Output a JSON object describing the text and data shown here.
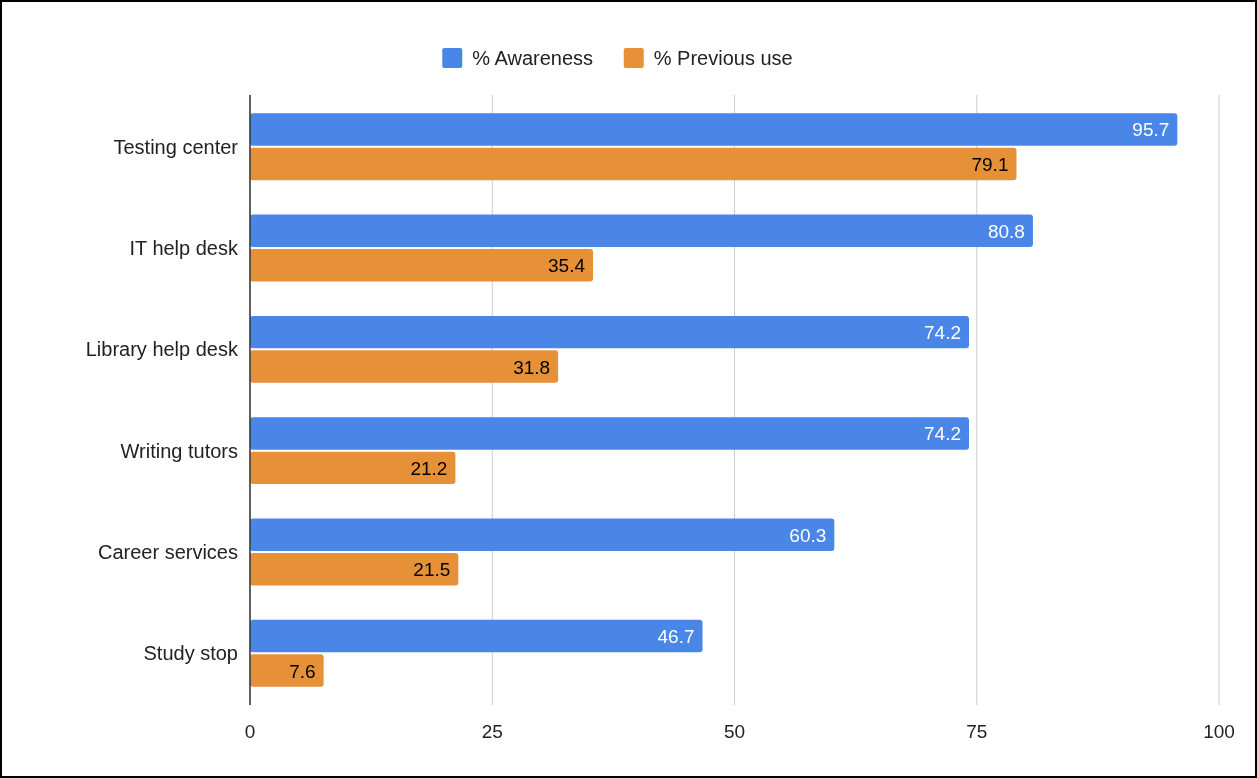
{
  "chart_data": {
    "type": "bar",
    "orientation": "horizontal",
    "categories": [
      "Testing center",
      "IT help desk",
      "Library help desk",
      "Writing tutors",
      "Career services",
      "Study stop"
    ],
    "series": [
      {
        "name": "% Awareness",
        "color": "#4a86e8",
        "values": [
          95.7,
          80.8,
          74.2,
          74.2,
          60.3,
          46.7
        ]
      },
      {
        "name": "% Previous use",
        "color": "#e69138",
        "values": [
          79.1,
          35.4,
          31.8,
          21.2,
          21.5,
          7.6
        ]
      }
    ],
    "xlim": [
      0,
      100
    ],
    "xticks": [
      0,
      25,
      50,
      75,
      100
    ],
    "grid": "x",
    "legend": "top",
    "data_labels": true
  }
}
